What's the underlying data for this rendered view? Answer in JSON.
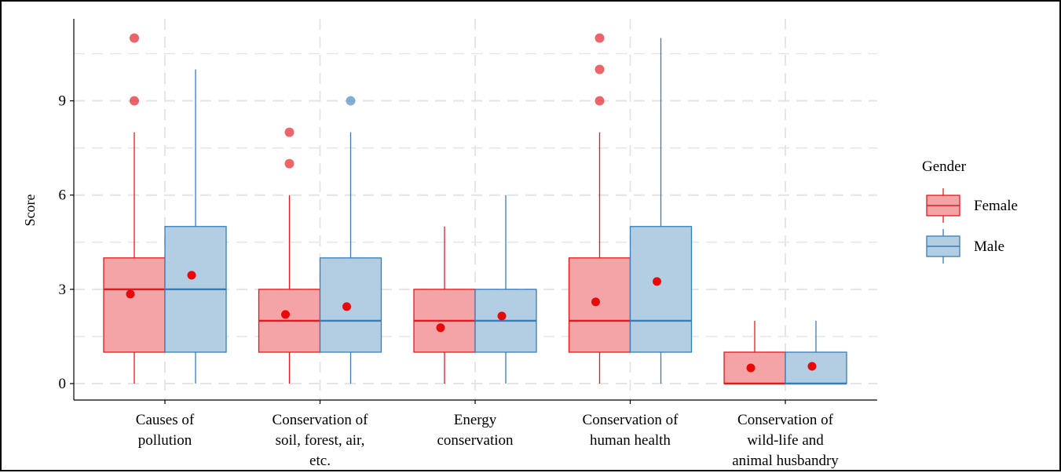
{
  "chart_data": {
    "type": "boxplot",
    "ylabel": "Score",
    "ylim": [
      -0.6,
      11.6
    ],
    "y_ticks": [
      0,
      3,
      6,
      9
    ],
    "grid": true,
    "legend_title": "Gender",
    "legend_position": "right",
    "categories": [
      [
        "Causes of",
        "pollution"
      ],
      [
        "Conservation of",
        "soil, forest, air,",
        "etc."
      ],
      [
        "Energy",
        "conservation"
      ],
      [
        "Conservation of",
        "human health"
      ],
      [
        "Conservation of",
        "wild-life and",
        "animal husbandry"
      ]
    ],
    "series": [
      {
        "name": "Female",
        "fill": "#f4a3a7",
        "stroke": "#e41a1c",
        "outlier_color": "#e8303a",
        "mean_color": "#e80a0a",
        "boxes": [
          {
            "whisker_low": 0,
            "q1": 1,
            "median": 3,
            "q3": 4,
            "whisker_high": 8,
            "mean": 2.85,
            "outliers": [
              9,
              11
            ]
          },
          {
            "whisker_low": 0,
            "q1": 1,
            "median": 2,
            "q3": 3,
            "whisker_high": 6,
            "mean": 2.2,
            "outliers": [
              7,
              8
            ]
          },
          {
            "whisker_low": 0,
            "q1": 1,
            "median": 2,
            "q3": 3,
            "whisker_high": 5,
            "mean": 1.78,
            "outliers": []
          },
          {
            "whisker_low": 0,
            "q1": 1,
            "median": 2,
            "q3": 4,
            "whisker_high": 8,
            "mean": 2.6,
            "outliers": [
              9,
              10,
              11
            ]
          },
          {
            "whisker_low": 0,
            "q1": 0,
            "median": 0,
            "q3": 1,
            "whisker_high": 2,
            "mean": 0.5,
            "outliers": []
          }
        ]
      },
      {
        "name": "Male",
        "fill": "#b3cde3",
        "stroke": "#377eb8",
        "outlier_color": "#5b93c8",
        "mean_color": "#e80a0a",
        "boxes": [
          {
            "whisker_low": 0,
            "q1": 1,
            "median": 3,
            "q3": 5,
            "whisker_high": 10,
            "mean": 3.45,
            "outliers": []
          },
          {
            "whisker_low": 0,
            "q1": 1,
            "median": 2,
            "q3": 4,
            "whisker_high": 8,
            "mean": 2.45,
            "outliers": [
              9
            ]
          },
          {
            "whisker_low": 0,
            "q1": 1,
            "median": 2,
            "q3": 3,
            "whisker_high": 6,
            "mean": 2.15,
            "outliers": []
          },
          {
            "whisker_low": 0,
            "q1": 1,
            "median": 2,
            "q3": 5,
            "whisker_high": 11,
            "mean": 3.25,
            "outliers": []
          },
          {
            "whisker_low": 0,
            "q1": 0,
            "median": 0,
            "q3": 1,
            "whisker_high": 2,
            "mean": 0.55,
            "outliers": []
          }
        ]
      }
    ]
  }
}
